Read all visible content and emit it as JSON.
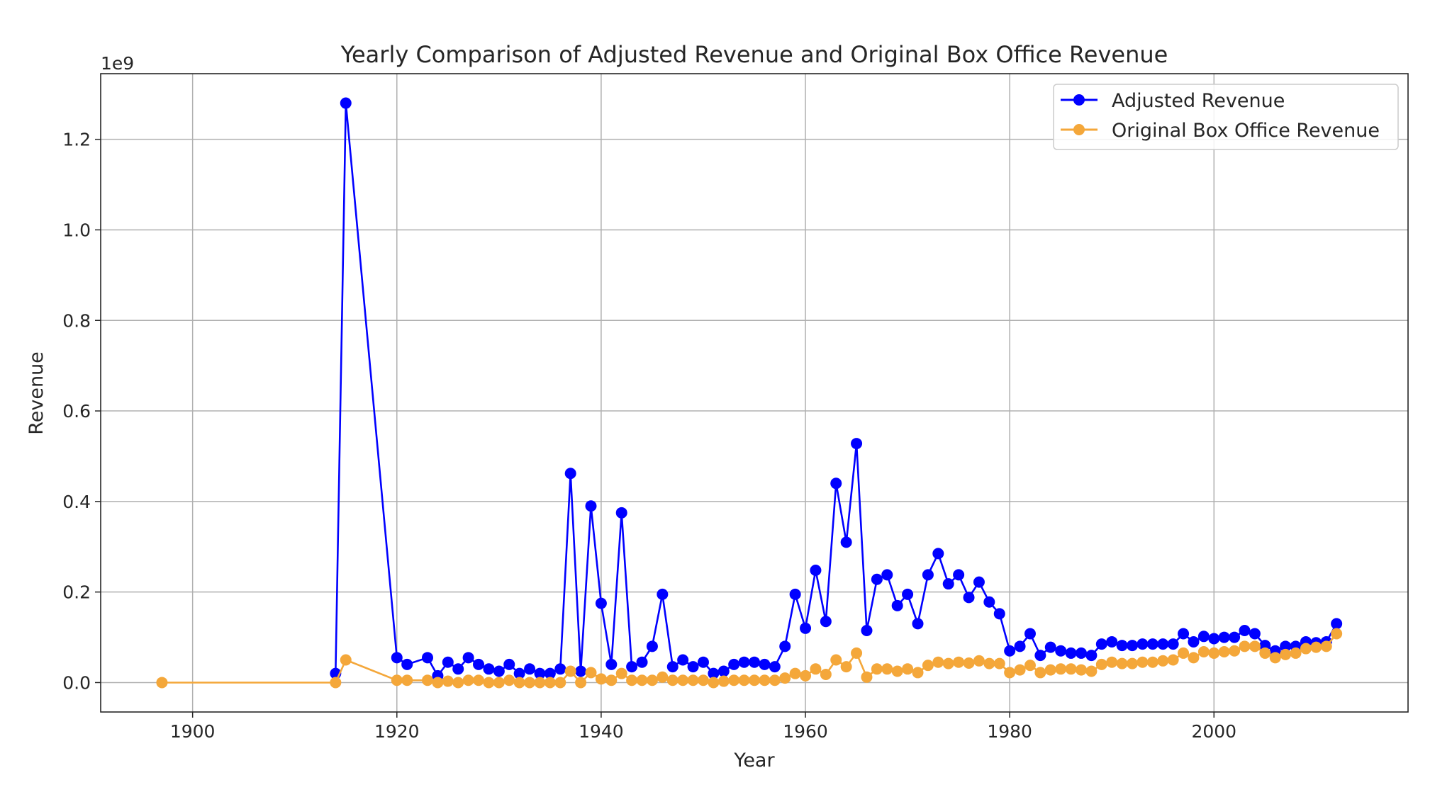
{
  "chart_data": {
    "type": "line",
    "title": "Yearly Comparison of Adjusted Revenue and Original Box Office Revenue",
    "xlabel": "Year",
    "ylabel": "Revenue",
    "y_offset_text": "1e9",
    "xlim": [
      1891,
      2019
    ],
    "ylim": [
      -0.065,
      1.345
    ],
    "x_ticks": [
      1900,
      1920,
      1940,
      1960,
      1980,
      2000
    ],
    "y_ticks": [
      0.0,
      0.2,
      0.4,
      0.6,
      0.8,
      1.0,
      1.2
    ],
    "y_tick_labels": [
      "0.0",
      "0.2",
      "0.4",
      "0.6",
      "0.8",
      "1.0",
      "1.2"
    ],
    "grid": true,
    "legend_position": "top-right",
    "series": [
      {
        "name": "Adjusted Revenue",
        "color": "#0000ff",
        "points": [
          [
            1914,
            0.02
          ],
          [
            1915,
            1.28
          ],
          [
            1920,
            0.055
          ],
          [
            1921,
            0.04
          ],
          [
            1923,
            0.055
          ],
          [
            1924,
            0.015
          ],
          [
            1925,
            0.045
          ],
          [
            1926,
            0.03
          ],
          [
            1927,
            0.055
          ],
          [
            1928,
            0.04
          ],
          [
            1929,
            0.03
          ],
          [
            1930,
            0.025
          ],
          [
            1931,
            0.04
          ],
          [
            1932,
            0.02
          ],
          [
            1933,
            0.03
          ],
          [
            1934,
            0.02
          ],
          [
            1935,
            0.02
          ],
          [
            1936,
            0.03
          ],
          [
            1937,
            0.462
          ],
          [
            1938,
            0.025
          ],
          [
            1939,
            0.39
          ],
          [
            1940,
            0.175
          ],
          [
            1941,
            0.04
          ],
          [
            1942,
            0.375
          ],
          [
            1943,
            0.035
          ],
          [
            1944,
            0.045
          ],
          [
            1945,
            0.08
          ],
          [
            1946,
            0.195
          ],
          [
            1947,
            0.035
          ],
          [
            1948,
            0.05
          ],
          [
            1949,
            0.035
          ],
          [
            1950,
            0.045
          ],
          [
            1951,
            0.02
          ],
          [
            1952,
            0.025
          ],
          [
            1953,
            0.04
          ],
          [
            1954,
            0.045
          ],
          [
            1955,
            0.045
          ],
          [
            1956,
            0.04
          ],
          [
            1957,
            0.035
          ],
          [
            1958,
            0.08
          ],
          [
            1959,
            0.195
          ],
          [
            1960,
            0.12
          ],
          [
            1961,
            0.248
          ],
          [
            1962,
            0.135
          ],
          [
            1963,
            0.44
          ],
          [
            1964,
            0.31
          ],
          [
            1965,
            0.528
          ],
          [
            1966,
            0.115
          ],
          [
            1967,
            0.228
          ],
          [
            1968,
            0.238
          ],
          [
            1969,
            0.17
          ],
          [
            1970,
            0.195
          ],
          [
            1971,
            0.13
          ],
          [
            1972,
            0.238
          ],
          [
            1973,
            0.285
          ],
          [
            1974,
            0.218
          ],
          [
            1975,
            0.238
          ],
          [
            1976,
            0.188
          ],
          [
            1977,
            0.222
          ],
          [
            1978,
            0.178
          ],
          [
            1979,
            0.152
          ],
          [
            1980,
            0.07
          ],
          [
            1981,
            0.08
          ],
          [
            1982,
            0.108
          ],
          [
            1983,
            0.06
          ],
          [
            1984,
            0.078
          ],
          [
            1985,
            0.07
          ],
          [
            1986,
            0.065
          ],
          [
            1987,
            0.065
          ],
          [
            1988,
            0.06
          ],
          [
            1989,
            0.085
          ],
          [
            1990,
            0.09
          ],
          [
            1991,
            0.082
          ],
          [
            1992,
            0.082
          ],
          [
            1993,
            0.085
          ],
          [
            1994,
            0.085
          ],
          [
            1995,
            0.085
          ],
          [
            1996,
            0.085
          ],
          [
            1997,
            0.108
          ],
          [
            1998,
            0.09
          ],
          [
            1999,
            0.102
          ],
          [
            2000,
            0.097
          ],
          [
            2001,
            0.1
          ],
          [
            2002,
            0.1
          ],
          [
            2003,
            0.115
          ],
          [
            2004,
            0.108
          ],
          [
            2005,
            0.082
          ],
          [
            2006,
            0.07
          ],
          [
            2007,
            0.08
          ],
          [
            2008,
            0.08
          ],
          [
            2009,
            0.09
          ],
          [
            2010,
            0.088
          ],
          [
            2011,
            0.09
          ],
          [
            2012,
            0.13
          ]
        ]
      },
      {
        "name": "Original Box Office Revenue",
        "color": "#f4a73a",
        "points": [
          [
            1897,
            0.0
          ],
          [
            1914,
            0.0
          ],
          [
            1915,
            0.05
          ],
          [
            1920,
            0.005
          ],
          [
            1921,
            0.005
          ],
          [
            1923,
            0.005
          ],
          [
            1924,
            0.0
          ],
          [
            1925,
            0.003
          ],
          [
            1926,
            0.0
          ],
          [
            1927,
            0.005
          ],
          [
            1928,
            0.005
          ],
          [
            1929,
            0.0
          ],
          [
            1930,
            0.0
          ],
          [
            1931,
            0.005
          ],
          [
            1932,
            0.0
          ],
          [
            1933,
            0.0
          ],
          [
            1934,
            0.0
          ],
          [
            1935,
            0.0
          ],
          [
            1936,
            0.0
          ],
          [
            1937,
            0.025
          ],
          [
            1938,
            0.0
          ],
          [
            1939,
            0.022
          ],
          [
            1940,
            0.008
          ],
          [
            1941,
            0.005
          ],
          [
            1942,
            0.02
          ],
          [
            1943,
            0.005
          ],
          [
            1944,
            0.005
          ],
          [
            1945,
            0.005
          ],
          [
            1946,
            0.012
          ],
          [
            1947,
            0.005
          ],
          [
            1948,
            0.005
          ],
          [
            1949,
            0.005
          ],
          [
            1950,
            0.005
          ],
          [
            1951,
            0.0
          ],
          [
            1952,
            0.003
          ],
          [
            1953,
            0.005
          ],
          [
            1954,
            0.005
          ],
          [
            1955,
            0.005
          ],
          [
            1956,
            0.005
          ],
          [
            1957,
            0.005
          ],
          [
            1958,
            0.01
          ],
          [
            1959,
            0.02
          ],
          [
            1960,
            0.015
          ],
          [
            1961,
            0.03
          ],
          [
            1962,
            0.018
          ],
          [
            1963,
            0.05
          ],
          [
            1964,
            0.035
          ],
          [
            1965,
            0.065
          ],
          [
            1966,
            0.012
          ],
          [
            1967,
            0.03
          ],
          [
            1968,
            0.03
          ],
          [
            1969,
            0.025
          ],
          [
            1970,
            0.03
          ],
          [
            1971,
            0.022
          ],
          [
            1972,
            0.038
          ],
          [
            1973,
            0.045
          ],
          [
            1974,
            0.042
          ],
          [
            1975,
            0.045
          ],
          [
            1976,
            0.043
          ],
          [
            1977,
            0.048
          ],
          [
            1978,
            0.042
          ],
          [
            1979,
            0.042
          ],
          [
            1980,
            0.022
          ],
          [
            1981,
            0.028
          ],
          [
            1982,
            0.038
          ],
          [
            1983,
            0.022
          ],
          [
            1984,
            0.028
          ],
          [
            1985,
            0.03
          ],
          [
            1986,
            0.03
          ],
          [
            1987,
            0.028
          ],
          [
            1988,
            0.025
          ],
          [
            1989,
            0.04
          ],
          [
            1990,
            0.045
          ],
          [
            1991,
            0.042
          ],
          [
            1992,
            0.042
          ],
          [
            1993,
            0.045
          ],
          [
            1994,
            0.045
          ],
          [
            1995,
            0.048
          ],
          [
            1996,
            0.05
          ],
          [
            1997,
            0.065
          ],
          [
            1998,
            0.055
          ],
          [
            1999,
            0.068
          ],
          [
            2000,
            0.065
          ],
          [
            2001,
            0.068
          ],
          [
            2002,
            0.07
          ],
          [
            2003,
            0.08
          ],
          [
            2004,
            0.08
          ],
          [
            2005,
            0.065
          ],
          [
            2006,
            0.055
          ],
          [
            2007,
            0.062
          ],
          [
            2008,
            0.065
          ],
          [
            2009,
            0.075
          ],
          [
            2010,
            0.078
          ],
          [
            2011,
            0.08
          ],
          [
            2012,
            0.108
          ]
        ]
      }
    ]
  }
}
